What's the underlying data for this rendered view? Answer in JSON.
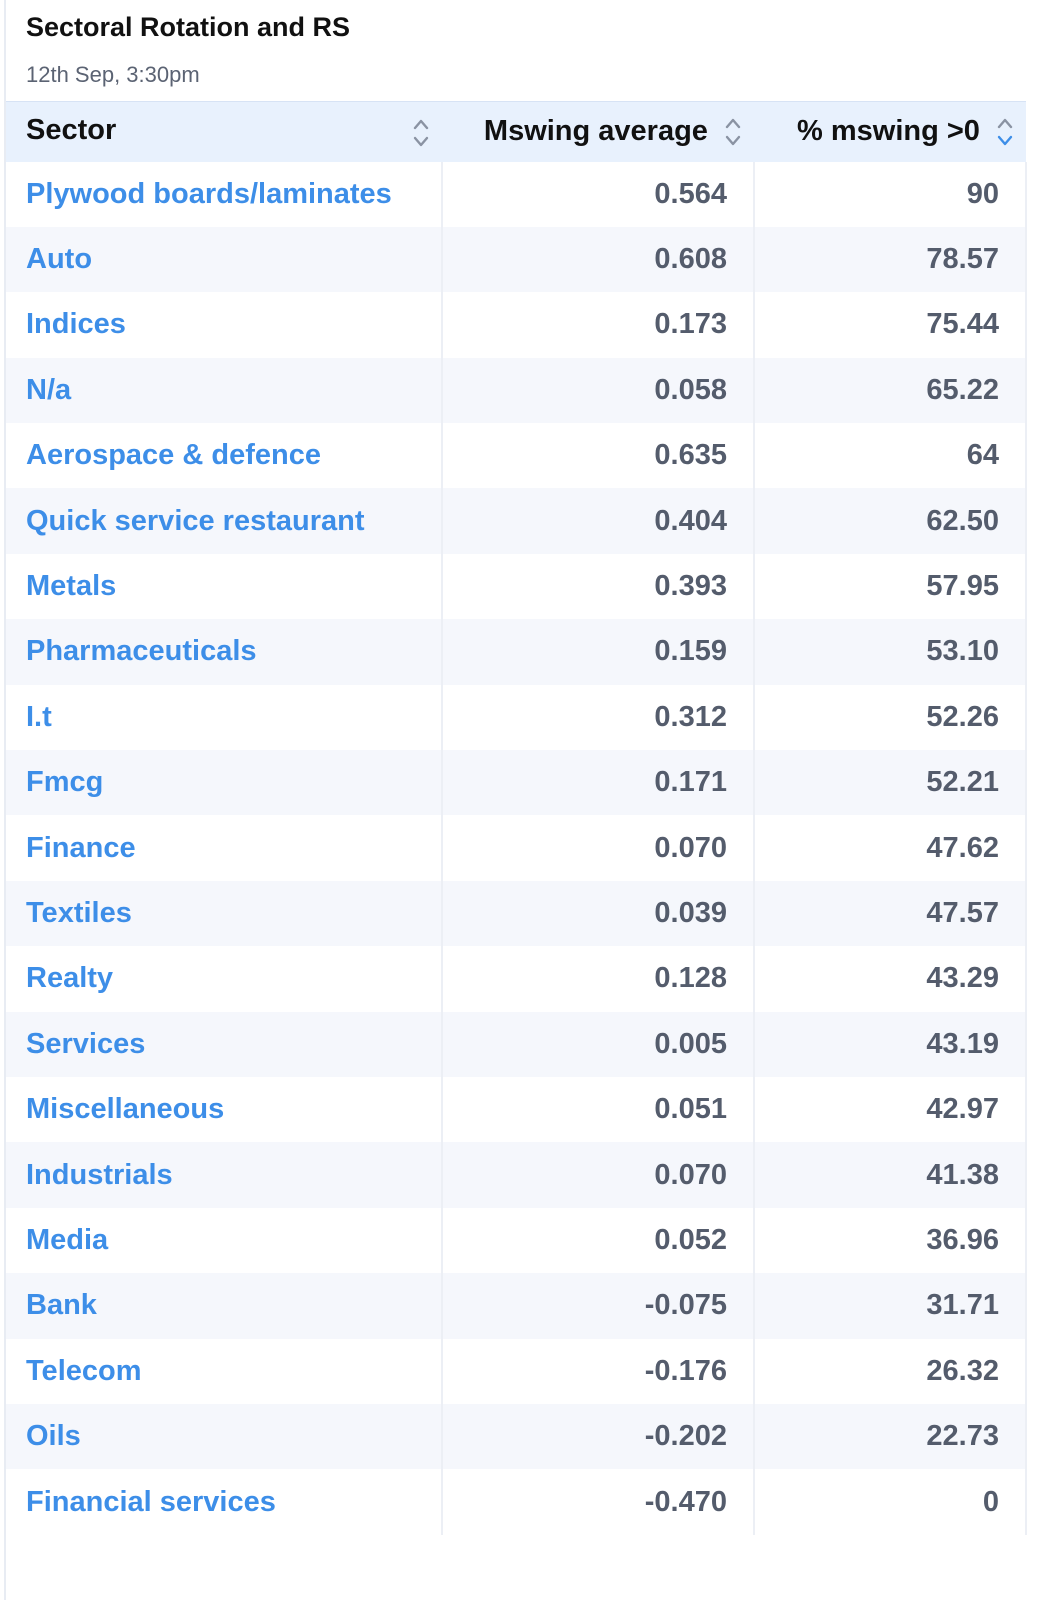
{
  "header": {
    "title": "Sectoral Rotation and RS",
    "subtitle": "12th Sep, 3:30pm"
  },
  "table": {
    "columns": [
      {
        "label": "Sector"
      },
      {
        "label": "Mswing average"
      },
      {
        "label": "% mswing >0"
      }
    ],
    "rows": [
      {
        "sector": "Plywood boards/laminates",
        "mswing_avg": "0.564",
        "pct": "90"
      },
      {
        "sector": "Auto",
        "mswing_avg": "0.608",
        "pct": "78.57"
      },
      {
        "sector": "Indices",
        "mswing_avg": "0.173",
        "pct": "75.44"
      },
      {
        "sector": "N/a",
        "mswing_avg": "0.058",
        "pct": "65.22"
      },
      {
        "sector": "Aerospace & defence",
        "mswing_avg": "0.635",
        "pct": "64"
      },
      {
        "sector": "Quick service restaurant",
        "mswing_avg": "0.404",
        "pct": "62.50"
      },
      {
        "sector": "Metals",
        "mswing_avg": "0.393",
        "pct": "57.95"
      },
      {
        "sector": "Pharmaceuticals",
        "mswing_avg": "0.159",
        "pct": "53.10"
      },
      {
        "sector": "I.t",
        "mswing_avg": "0.312",
        "pct": "52.26"
      },
      {
        "sector": "Fmcg",
        "mswing_avg": "0.171",
        "pct": "52.21"
      },
      {
        "sector": "Finance",
        "mswing_avg": "0.070",
        "pct": "47.62"
      },
      {
        "sector": "Textiles",
        "mswing_avg": "0.039",
        "pct": "47.57"
      },
      {
        "sector": "Realty",
        "mswing_avg": "0.128",
        "pct": "43.29"
      },
      {
        "sector": "Services",
        "mswing_avg": "0.005",
        "pct": "43.19"
      },
      {
        "sector": "Miscellaneous",
        "mswing_avg": "0.051",
        "pct": "42.97"
      },
      {
        "sector": "Industrials",
        "mswing_avg": "0.070",
        "pct": "41.38"
      },
      {
        "sector": "Media",
        "mswing_avg": "0.052",
        "pct": "36.96"
      },
      {
        "sector": "Bank",
        "mswing_avg": "-0.075",
        "pct": "31.71"
      },
      {
        "sector": "Telecom",
        "mswing_avg": "-0.176",
        "pct": "26.32"
      },
      {
        "sector": "Oils",
        "mswing_avg": "-0.202",
        "pct": "22.73"
      },
      {
        "sector": "Financial services",
        "mswing_avg": "-0.470",
        "pct": "0"
      }
    ]
  },
  "icons": {
    "sort": "sort-updown-icon"
  },
  "colors": {
    "header_bg": "#e8f1fd",
    "sector_link": "#3d8ee8",
    "number_text": "#545c6c",
    "stripe": "#f5f7fc"
  }
}
